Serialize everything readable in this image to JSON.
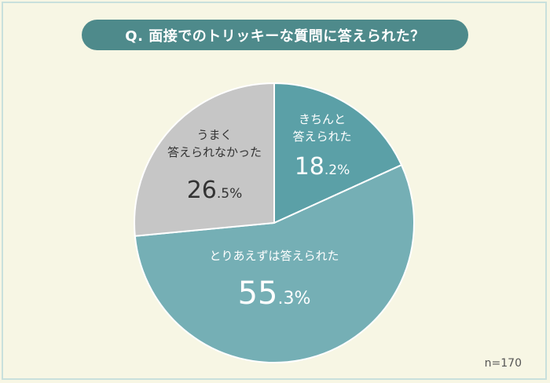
{
  "question": "Q. 面接でのトリッキーな質問に答えられた？",
  "sample_size": "n=170",
  "chart_data": {
    "type": "pie",
    "start_angle_deg": 0,
    "direction": "clockwise",
    "slices": [
      {
        "label": [
          "きちんと",
          "答えられた"
        ],
        "value": 18.2,
        "value_int": "18",
        "value_dec": ".2%",
        "color": "#5ba0a7",
        "text_color": "#ffffff"
      },
      {
        "label": [
          "とりあえずは答えられた"
        ],
        "value": 55.3,
        "value_int": "55",
        "value_dec": ".3%",
        "color": "#75afb5",
        "text_color": "#ffffff"
      },
      {
        "label": [
          "うまく",
          "答えられなかった"
        ],
        "value": 26.5,
        "value_int": "26",
        "value_dec": ".5%",
        "color": "#c6c6c6",
        "text_color": "#333333"
      }
    ]
  }
}
